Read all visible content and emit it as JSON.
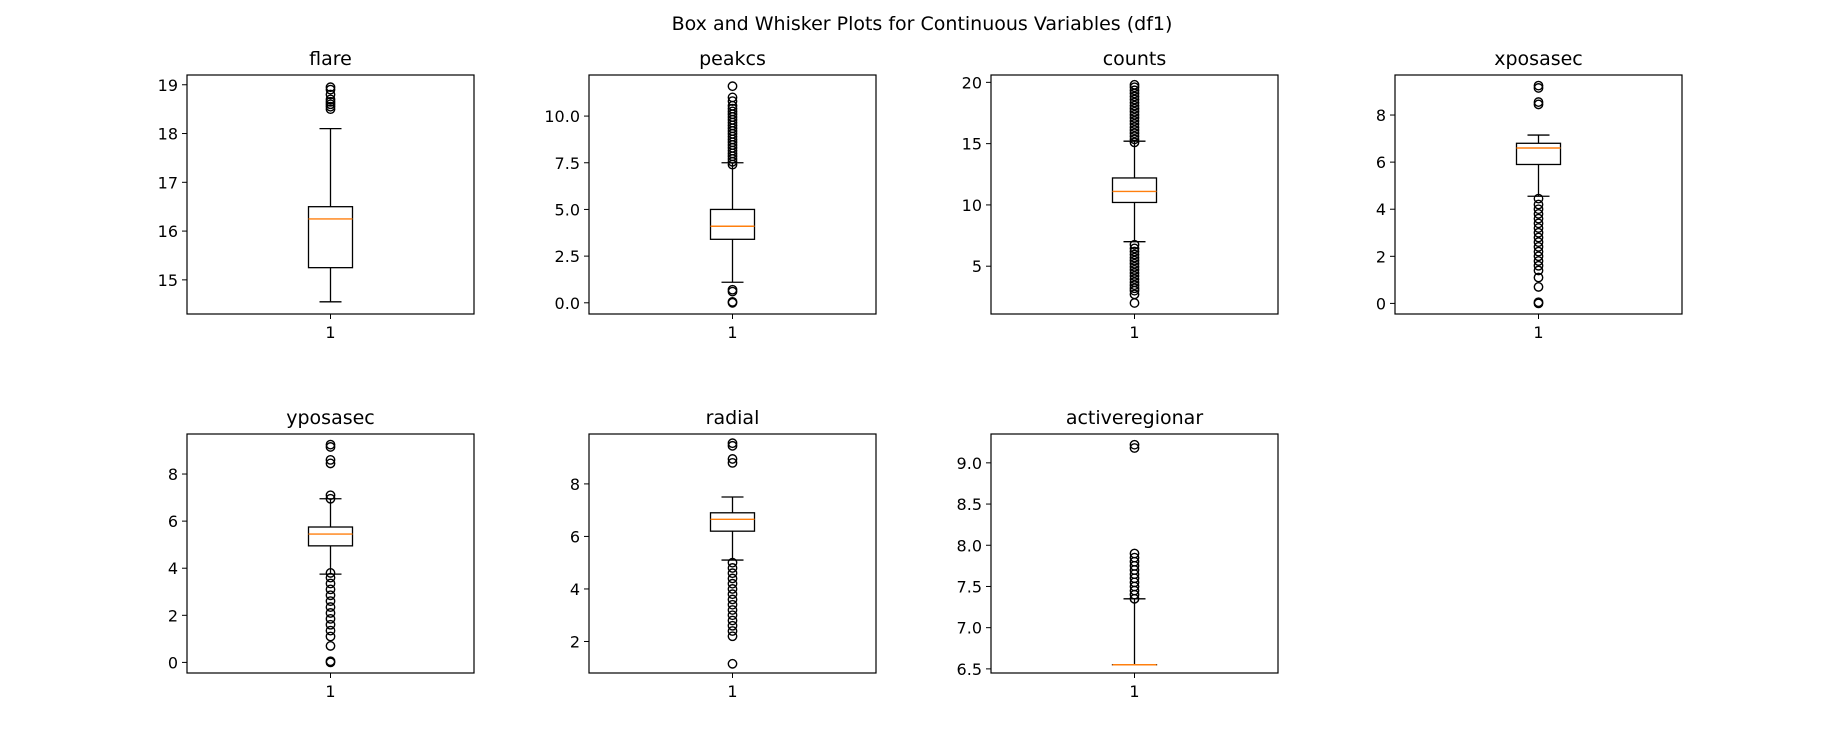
{
  "suptitle": "Box and Whisker Plots for Continuous Variables (df1)",
  "colors": {
    "box": "#000000",
    "median": "#ff7f0e",
    "flier": "#000000",
    "background": "#ffffff"
  },
  "chart_data": [
    {
      "type": "box",
      "title": "flare",
      "categories": [
        "1"
      ],
      "ylim": [
        14.3,
        19.2
      ],
      "yticks": [
        15,
        16,
        17,
        18,
        19
      ],
      "yticklabels": [
        "15",
        "16",
        "17",
        "18",
        "19"
      ],
      "box": {
        "whislo": 14.55,
        "q1": 15.25,
        "med": 16.25,
        "q3": 16.5,
        "whishi": 18.1
      },
      "fliers": [
        18.5,
        18.55,
        18.6,
        18.65,
        18.7,
        18.8,
        18.9,
        18.95
      ]
    },
    {
      "type": "box",
      "title": "peakcs",
      "categories": [
        "1"
      ],
      "ylim": [
        -0.6,
        12.2
      ],
      "yticks": [
        0,
        2.5,
        5,
        7.5,
        10
      ],
      "yticklabels": [
        "0.0",
        "2.5",
        "5.0",
        "7.5",
        "10.0"
      ],
      "box": {
        "whislo": 1.1,
        "q1": 3.4,
        "med": 4.1,
        "q3": 5.0,
        "whishi": 7.5
      },
      "fliers": [
        0.0,
        0.05,
        0.6,
        0.7,
        7.4,
        7.55,
        7.7,
        7.85,
        8.0,
        8.15,
        8.3,
        8.45,
        8.6,
        8.75,
        8.9,
        9.05,
        9.2,
        9.35,
        9.5,
        9.65,
        9.8,
        9.95,
        10.1,
        10.25,
        10.4,
        10.55,
        10.8,
        11.0,
        11.6
      ]
    },
    {
      "type": "box",
      "title": "counts",
      "categories": [
        "1"
      ],
      "ylim": [
        1.1,
        20.6
      ],
      "yticks": [
        5,
        10,
        15,
        20
      ],
      "yticklabels": [
        "5",
        "10",
        "15",
        "20"
      ],
      "box": {
        "whislo": 7.0,
        "q1": 10.2,
        "med": 11.1,
        "q3": 12.2,
        "whishi": 15.2
      },
      "fliers": [
        2.0,
        2.7,
        3.0,
        3.2,
        3.45,
        3.7,
        3.95,
        4.2,
        4.45,
        4.7,
        4.95,
        5.2,
        5.45,
        5.7,
        5.95,
        6.2,
        6.45,
        6.75,
        15.1,
        15.35,
        15.6,
        15.85,
        16.1,
        16.35,
        16.6,
        16.85,
        17.1,
        17.35,
        17.6,
        17.85,
        18.1,
        18.35,
        18.6,
        18.85,
        19.1,
        19.35,
        19.6,
        19.8
      ]
    },
    {
      "type": "box",
      "title": "xposasec",
      "categories": [
        "1"
      ],
      "ylim": [
        -0.45,
        9.7
      ],
      "yticks": [
        0,
        2,
        4,
        6,
        8
      ],
      "yticklabels": [
        "0",
        "2",
        "4",
        "6",
        "8"
      ],
      "box": {
        "whislo": 4.55,
        "q1": 5.9,
        "med": 6.6,
        "q3": 6.8,
        "whishi": 7.15
      },
      "fliers": [
        0.0,
        0.05,
        0.7,
        1.1,
        1.4,
        1.6,
        1.8,
        2.0,
        2.2,
        2.4,
        2.6,
        2.8,
        3.0,
        3.2,
        3.4,
        3.6,
        3.8,
        4.0,
        4.2,
        4.45,
        8.45,
        8.55,
        9.15,
        9.25
      ]
    },
    {
      "type": "box",
      "title": "yposasec",
      "categories": [
        "1"
      ],
      "ylim": [
        -0.45,
        9.7
      ],
      "yticks": [
        0,
        2,
        4,
        6,
        8
      ],
      "yticklabels": [
        "0",
        "2",
        "4",
        "6",
        "8"
      ],
      "box": {
        "whislo": 3.75,
        "q1": 4.95,
        "med": 5.45,
        "q3": 5.75,
        "whishi": 6.95
      },
      "fliers": [
        0.0,
        0.05,
        0.7,
        1.1,
        1.35,
        1.6,
        1.85,
        2.1,
        2.35,
        2.6,
        2.85,
        3.1,
        3.35,
        3.6,
        3.8,
        6.95,
        7.1,
        8.45,
        8.6,
        9.15,
        9.25
      ]
    },
    {
      "type": "box",
      "title": "radial",
      "categories": [
        "1"
      ],
      "ylim": [
        0.8,
        9.9
      ],
      "yticks": [
        2,
        4,
        6,
        8
      ],
      "yticklabels": [
        "2",
        "4",
        "6",
        "8"
      ],
      "box": {
        "whislo": 5.1,
        "q1": 6.2,
        "med": 6.65,
        "q3": 6.9,
        "whishi": 7.5
      },
      "fliers": [
        1.15,
        2.2,
        2.4,
        2.6,
        2.8,
        3.0,
        3.2,
        3.4,
        3.6,
        3.8,
        4.0,
        4.2,
        4.4,
        4.6,
        4.8,
        5.0,
        8.8,
        8.95,
        9.45,
        9.55
      ]
    },
    {
      "type": "box",
      "title": "activeregionar",
      "categories": [
        "1"
      ],
      "ylim": [
        6.45,
        9.35
      ],
      "yticks": [
        6.5,
        7.0,
        7.5,
        8.0,
        8.5,
        9.0
      ],
      "yticklabels": [
        "6.5",
        "7.0",
        "7.5",
        "8.0",
        "8.5",
        "9.0"
      ],
      "box": {
        "whislo": 6.55,
        "q1": 6.55,
        "med": 6.55,
        "q3": 6.55,
        "whishi": 7.35
      },
      "fliers": [
        7.35,
        7.4,
        7.45,
        7.5,
        7.55,
        7.6,
        7.65,
        7.7,
        7.75,
        7.8,
        7.85,
        7.9,
        9.18,
        9.22
      ]
    }
  ]
}
